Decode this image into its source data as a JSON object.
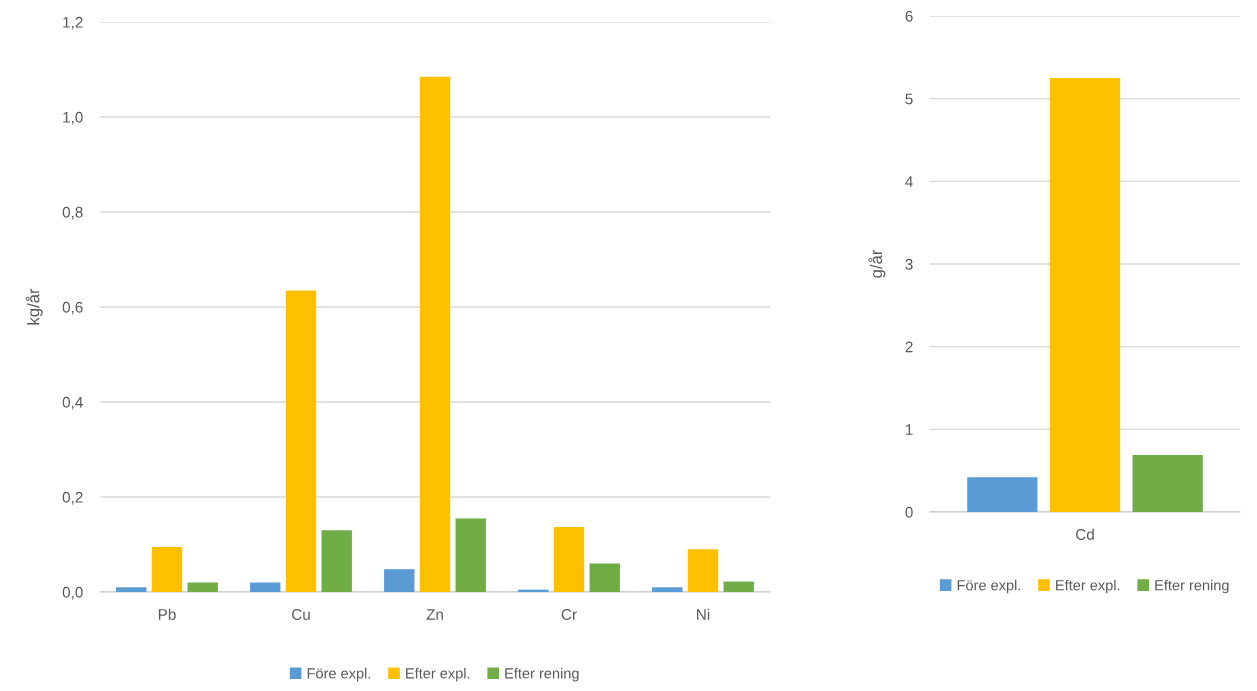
{
  "chart_data": [
    {
      "type": "bar",
      "ylabel": "kg/år",
      "categories": [
        "Pb",
        "Cu",
        "Zn",
        "Cr",
        "Ni"
      ],
      "series": [
        {
          "name": "Före expl.",
          "color": "#5b9bd5",
          "values": [
            0.01,
            0.02,
            0.048,
            0.005,
            0.01
          ]
        },
        {
          "name": "Efter expl.",
          "color": "#ffc000",
          "values": [
            0.095,
            0.635,
            1.085,
            0.137,
            0.09
          ]
        },
        {
          "name": "Efter rening",
          "color": "#70ad47",
          "values": [
            0.02,
            0.13,
            0.155,
            0.06,
            0.022
          ]
        }
      ],
      "ylim": [
        0,
        1.2
      ],
      "yticks": [
        {
          "value": 0,
          "label": "0,0"
        },
        {
          "value": 0.2,
          "label": "0,2"
        },
        {
          "value": 0.4,
          "label": "0,4"
        },
        {
          "value": 0.6,
          "label": "0,6"
        },
        {
          "value": 0.8,
          "label": "0,8"
        },
        {
          "value": 1.0,
          "label": "1,0"
        },
        {
          "value": 1.2,
          "label": "1,2"
        }
      ],
      "grid": "y",
      "legend": "bottom"
    },
    {
      "type": "bar",
      "ylabel": "g/år",
      "categories": [
        "Cd"
      ],
      "series": [
        {
          "name": "Före expl.",
          "color": "#5b9bd5",
          "values": [
            0.42
          ]
        },
        {
          "name": "Efter expl.",
          "color": "#ffc000",
          "values": [
            5.25
          ]
        },
        {
          "name": "Efter rening",
          "color": "#70ad47",
          "values": [
            0.69
          ]
        }
      ],
      "ylim": [
        0,
        6
      ],
      "yticks": [
        0,
        1,
        2,
        3,
        4,
        5,
        6
      ],
      "grid": "y",
      "legend": "bottom"
    }
  ]
}
